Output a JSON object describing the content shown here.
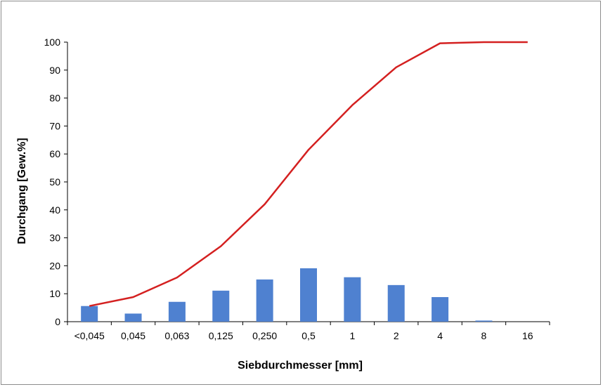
{
  "chart_data": {
    "type": "bar",
    "title": "",
    "xlabel": "Siebdurchmesser [mm]",
    "ylabel": "Durchgang [Gew.%]",
    "categories": [
      "<0,045",
      "0,045",
      "0,063",
      "0,125",
      "0,250",
      "0,5",
      "1",
      "2",
      "4",
      "8",
      "16"
    ],
    "ylim": [
      0,
      100
    ],
    "yticks": [
      0,
      10,
      20,
      30,
      40,
      50,
      60,
      70,
      80,
      90,
      100
    ],
    "grid": false,
    "legend": "none",
    "series": [
      {
        "kind": "bar",
        "color": "#4f81d0",
        "values": [
          5.6,
          2.9,
          7.1,
          11.1,
          15.1,
          19.1,
          15.9,
          13.1,
          8.8,
          0.4,
          0
        ]
      },
      {
        "kind": "line",
        "color": "#d42020",
        "values": [
          5.6,
          8.8,
          15.8,
          27.0,
          42.0,
          61.5,
          77.5,
          91.0,
          99.6,
          100.0,
          100.0
        ]
      }
    ]
  }
}
